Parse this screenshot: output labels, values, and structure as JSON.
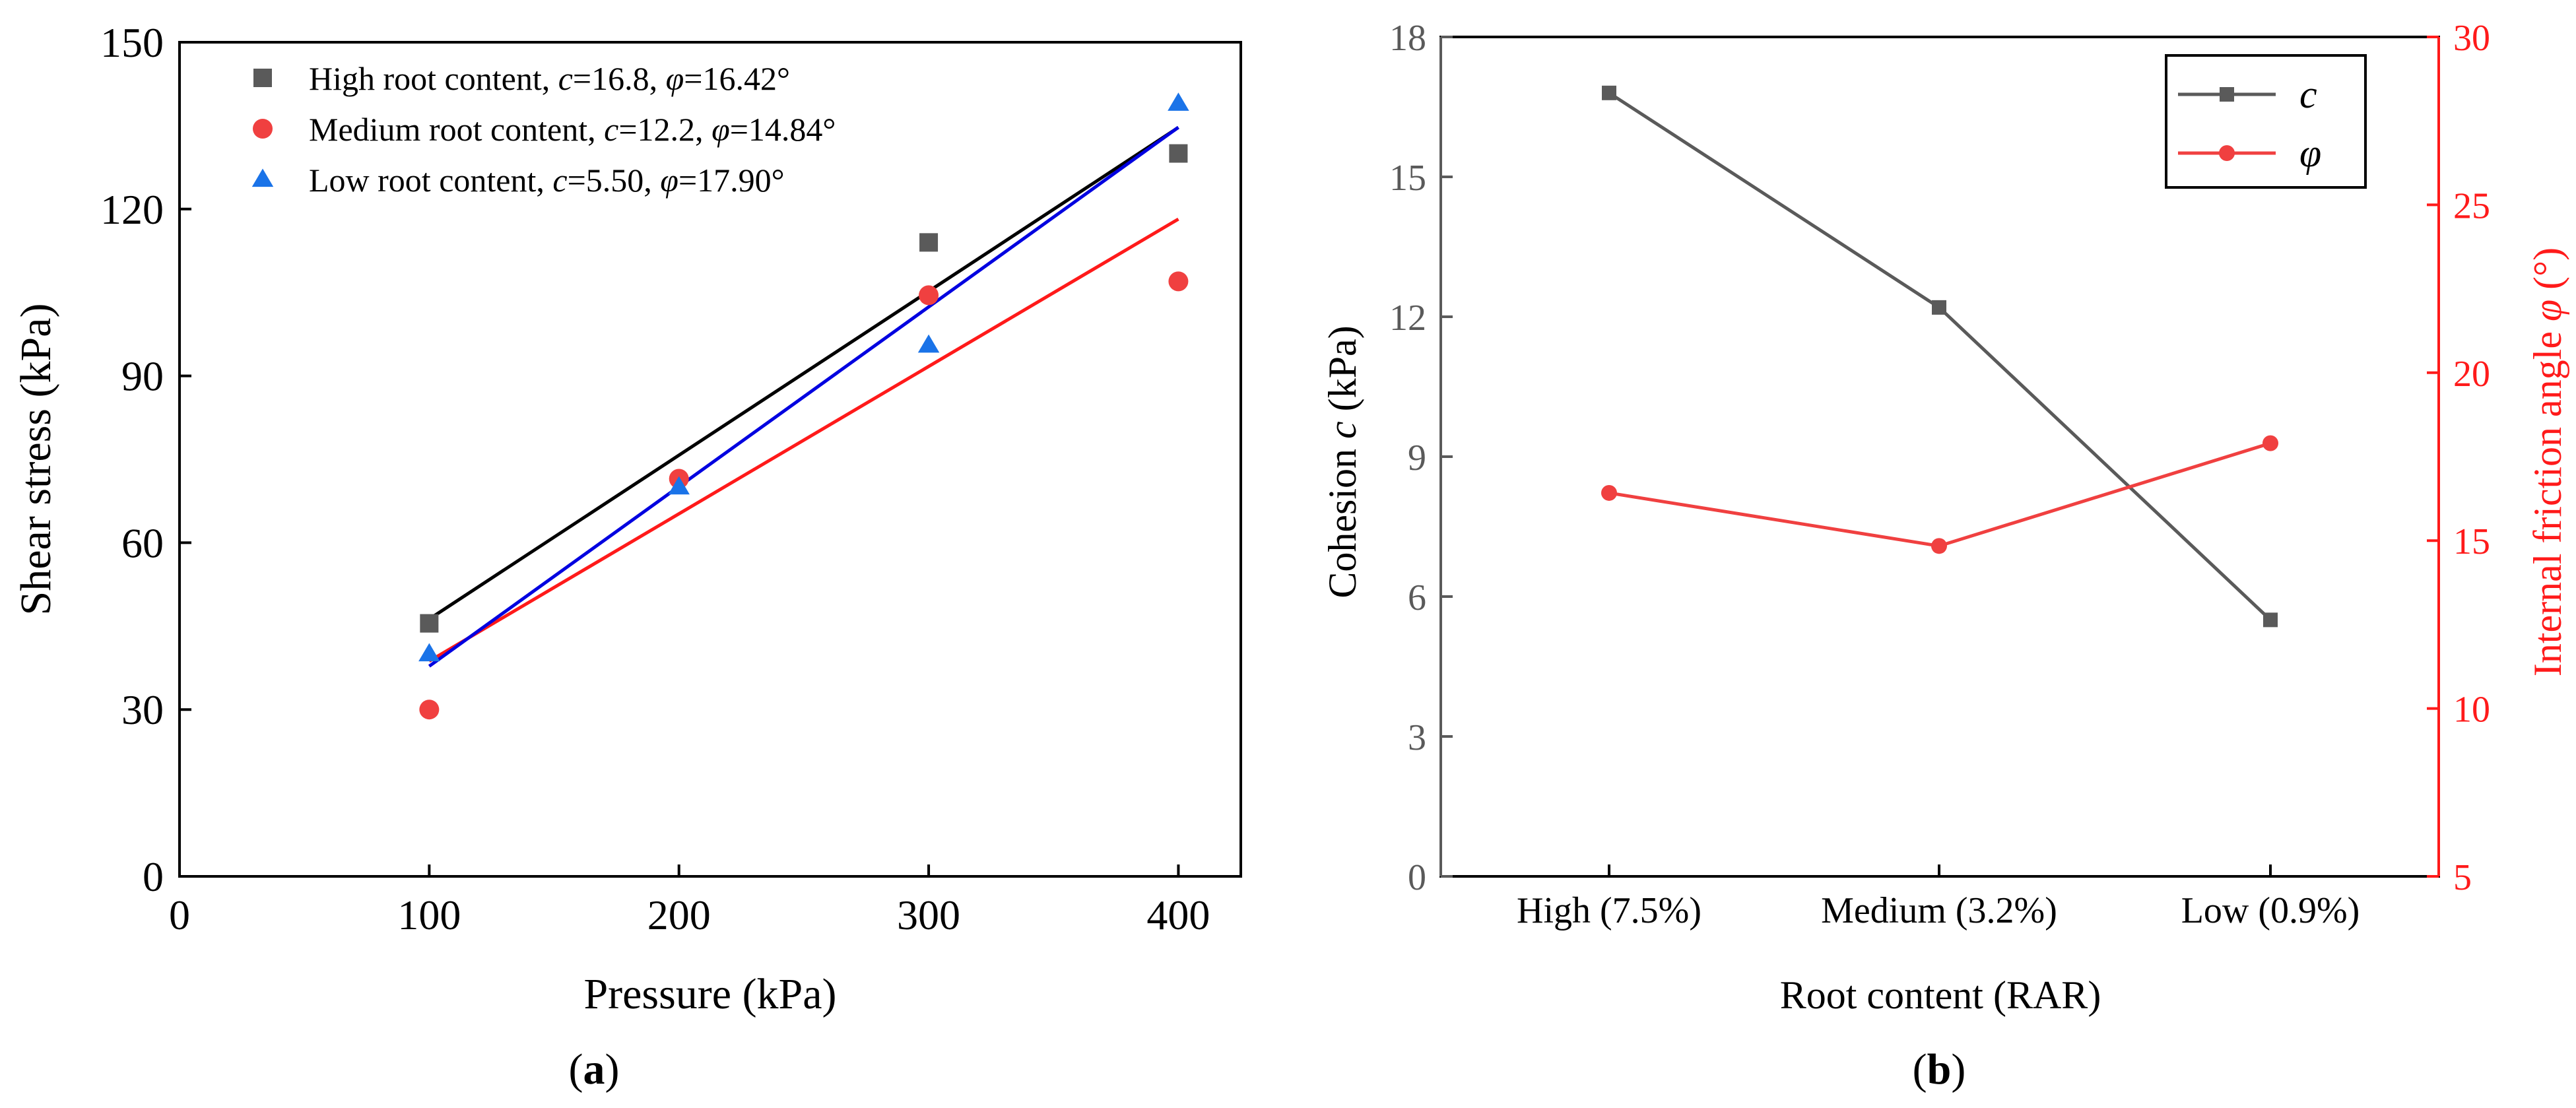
{
  "colors": {
    "high": "#5a5a5a",
    "medium": "#f04040",
    "low": "#1a73e8",
    "fit_high": "#000000",
    "fit_medium": "#ff1a1a",
    "fit_low": "#0000e0",
    "c_line": "#5a5a5a",
    "phi_line": "#f04040",
    "right_axis": "#ff1a1a",
    "left_axis_b": "#5a5a5a"
  },
  "panels": {
    "a_label": "a",
    "b_label": "b"
  },
  "chart_data": [
    {
      "type": "scatter",
      "panel": "a",
      "xlabel": "Pressure (kPa)",
      "ylabel": "Shear stress (kPa)",
      "xlim": [
        0,
        425
      ],
      "ylim": [
        0,
        150
      ],
      "xticks": [
        0,
        100,
        200,
        300,
        400
      ],
      "yticks": [
        0,
        30,
        60,
        90,
        120,
        150
      ],
      "grid": false,
      "legend_position": "top-left",
      "series": [
        {
          "key": "high",
          "marker": "square",
          "legend_prefix": "High root content, ",
          "c_value": "16.8",
          "phi_value": "16.42°",
          "x": [
            100,
            300,
            400
          ],
          "y": [
            45.5,
            114,
            130
          ],
          "fit_intercept": 16.8,
          "fit_slope": 0.2947,
          "fit_range": [
            100,
            400
          ]
        },
        {
          "key": "medium",
          "marker": "circle",
          "legend_prefix": "Medium root content, ",
          "c_value": "12.2",
          "phi_value": "14.84°",
          "x": [
            100,
            200,
            300,
            400
          ],
          "y": [
            30,
            71.5,
            104.5,
            107
          ],
          "fit_intercept": 12.2,
          "fit_slope": 0.265,
          "fit_range": [
            100,
            400
          ]
        },
        {
          "key": "low",
          "marker": "triangle",
          "legend_prefix": "Low root content, ",
          "c_value": "5.50",
          "phi_value": "17.90°",
          "x": [
            100,
            200,
            300,
            400
          ],
          "y": [
            40,
            70,
            95.5,
            139
          ],
          "fit_intercept": 5.5,
          "fit_slope": 0.323,
          "fit_range": [
            100,
            400
          ]
        }
      ]
    },
    {
      "type": "line",
      "panel": "b",
      "xlabel": "Root content (RAR)",
      "ylabel_left_prefix": "Cohesion ",
      "ylabel_left_symbol": "c",
      "ylabel_left_suffix": " (kPa)",
      "ylabel_right_prefix": "Internal friction angle ",
      "ylabel_right_symbol": "φ",
      "ylabel_right_suffix": " (°)",
      "categories": [
        "High (7.5%)",
        "Medium (3.2%)",
        "Low (0.9%)"
      ],
      "ylim_left": [
        0,
        18
      ],
      "yticks_left": [
        0,
        3,
        6,
        9,
        12,
        15,
        18
      ],
      "ylim_right": [
        5,
        30
      ],
      "yticks_right": [
        5,
        10,
        15,
        20,
        25,
        30
      ],
      "grid": false,
      "legend_position": "top-right",
      "series": [
        {
          "key": "c",
          "name": "c",
          "axis": "left",
          "marker": "square",
          "values": [
            16.8,
            12.2,
            5.5
          ]
        },
        {
          "key": "phi",
          "name": "φ",
          "axis": "right",
          "marker": "circle",
          "values": [
            16.42,
            14.84,
            17.9
          ]
        }
      ]
    }
  ]
}
